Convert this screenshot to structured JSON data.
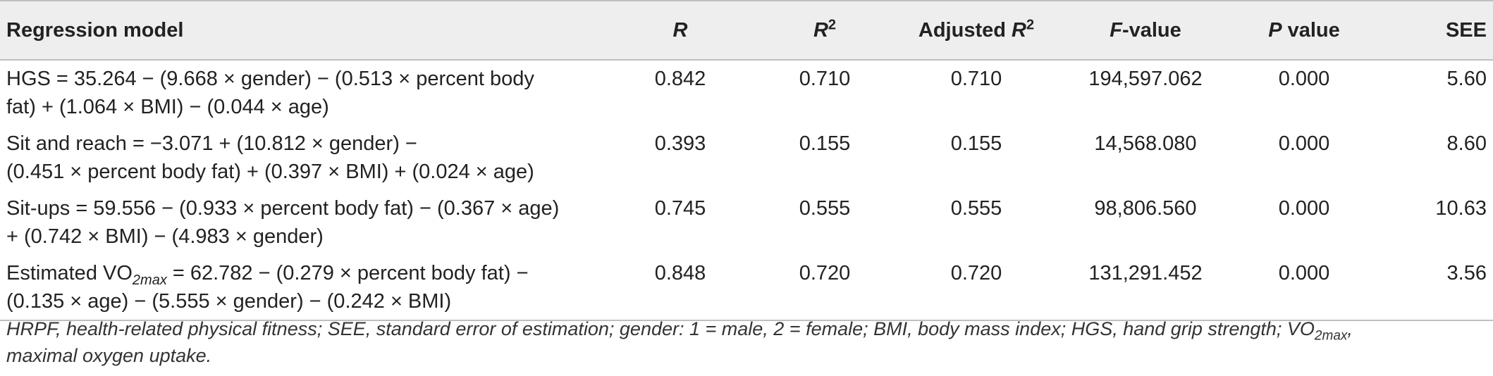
{
  "table": {
    "headers": {
      "model": "Regression model",
      "r": "R",
      "r2_base": "R",
      "r2_sup": "2",
      "adj_prefix": "Adjusted ",
      "adj_base": "R",
      "adj_sup": "2",
      "f_italic": "F",
      "f_rest": "-value",
      "p_italic": "P",
      "p_rest": " value",
      "see": "SEE"
    },
    "rows": [
      {
        "model_line1": "HGS = 35.264 − (9.668 × gender) − (0.513 × percent body",
        "model_line2": "fat) + (1.064 × BMI) − (0.044 × age)",
        "r": "0.842",
        "r2": "0.710",
        "adj_r2": "0.710",
        "f_value": "194,597.062",
        "p_value": "0.000",
        "see": "5.60"
      },
      {
        "model_line1": "Sit and reach = −3.071 + (10.812 × gender) −",
        "model_line2": "(0.451 × percent body fat) + (0.397 × BMI) + (0.024 × age)",
        "r": "0.393",
        "r2": "0.155",
        "adj_r2": "0.155",
        "f_value": "14,568.080",
        "p_value": "0.000",
        "see": "8.60"
      },
      {
        "model_line1": "Sit-ups = 59.556 − (0.933 × percent body fat) − (0.367 × age)",
        "model_line2": "+ (0.742 × BMI) − (4.983 × gender)",
        "r": "0.745",
        "r2": "0.555",
        "adj_r2": "0.555",
        "f_value": "98,806.560",
        "p_value": "0.000",
        "see": "10.63"
      },
      {
        "model_line1_pre": "Estimated VO",
        "model_line1_sub": "2max",
        "model_line1_post": " = 62.782 − (0.279 × percent body fat) −",
        "model_line2": "(0.135 × age) − (5.555 × gender) − (0.242 × BMI)",
        "r": "0.848",
        "r2": "0.720",
        "adj_r2": "0.720",
        "f_value": "131,291.452",
        "p_value": "0.000",
        "see": "3.56"
      }
    ]
  },
  "footnote": {
    "part1": "HRPF, health-related physical fitness; SEE, standard error of estimation; gender: 1 = male, 2 = female; BMI, body mass index; HGS, hand grip strength; VO",
    "sub": "2max",
    "part2": ",",
    "part3": "maximal oxygen uptake."
  }
}
